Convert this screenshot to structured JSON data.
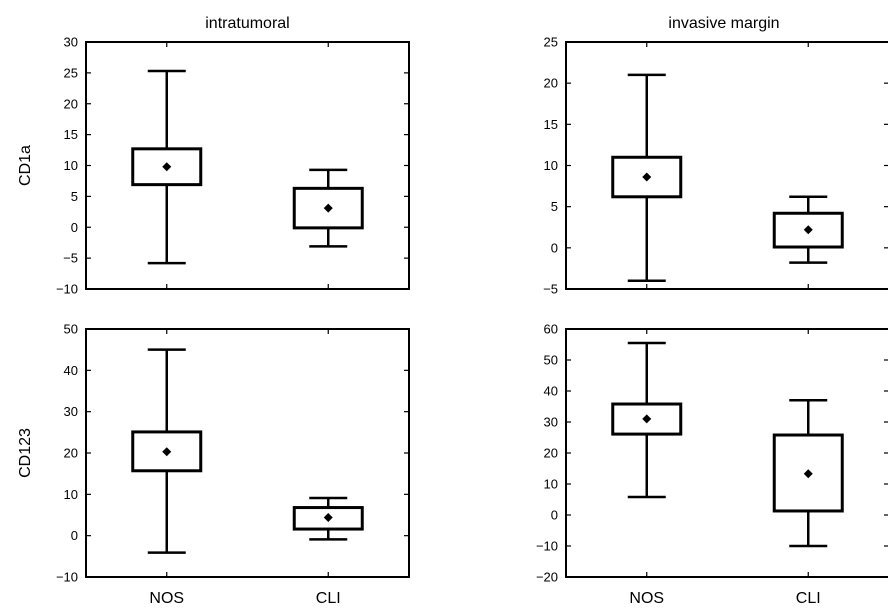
{
  "chart_data": [
    {
      "type": "box",
      "title": "intratumoral",
      "ylabel": "CD1a",
      "categories": [
        "NOS",
        "CLI"
      ],
      "ylim": [
        -10,
        30
      ],
      "yticks": [
        -10,
        -5,
        0,
        5,
        10,
        15,
        20,
        25,
        30
      ],
      "boxes": [
        {
          "category": "NOS",
          "whisker_low": -5.8,
          "q1": 6.9,
          "q3": 12.7,
          "whisker_high": 25.3,
          "mean": 9.8
        },
        {
          "category": "CLI",
          "whisker_low": -3.1,
          "q1": -0.1,
          "q3": 6.3,
          "whisker_high": 9.3,
          "mean": 3.1
        }
      ]
    },
    {
      "type": "box",
      "title": "invasive margin",
      "ylabel": "",
      "categories": [
        "NOS",
        "CLI"
      ],
      "ylim": [
        -5,
        25
      ],
      "yticks": [
        -5,
        0,
        5,
        10,
        15,
        20,
        25
      ],
      "boxes": [
        {
          "category": "NOS",
          "whisker_low": -4.0,
          "q1": 6.2,
          "q3": 11.0,
          "whisker_high": 21.0,
          "mean": 8.6
        },
        {
          "category": "CLI",
          "whisker_low": -1.8,
          "q1": 0.1,
          "q3": 4.2,
          "whisker_high": 6.2,
          "mean": 2.2
        }
      ]
    },
    {
      "type": "box",
      "title": "",
      "ylabel": "CD123",
      "categories": [
        "NOS",
        "CLI"
      ],
      "ylim": [
        -10,
        50
      ],
      "yticks": [
        -10,
        0,
        10,
        20,
        30,
        40,
        50
      ],
      "boxes": [
        {
          "category": "NOS",
          "whisker_low": -4.1,
          "q1": 15.7,
          "q3": 25.1,
          "whisker_high": 45.0,
          "mean": 20.3
        },
        {
          "category": "CLI",
          "whisker_low": -0.9,
          "q1": 1.6,
          "q3": 6.8,
          "whisker_high": 9.1,
          "mean": 4.4
        }
      ]
    },
    {
      "type": "box",
      "title": "",
      "ylabel": "",
      "categories": [
        "NOS",
        "CLI"
      ],
      "ylim": [
        -20,
        60
      ],
      "yticks": [
        -20,
        -10,
        0,
        10,
        20,
        30,
        40,
        50,
        60
      ],
      "boxes": [
        {
          "category": "NOS",
          "whisker_low": 5.8,
          "q1": 26.1,
          "q3": 35.8,
          "whisker_high": 55.5,
          "mean": 31.0
        },
        {
          "category": "CLI",
          "whisker_low": -10.0,
          "q1": 1.3,
          "q3": 25.8,
          "whisker_high": 37.0,
          "mean": 13.3
        }
      ]
    }
  ]
}
